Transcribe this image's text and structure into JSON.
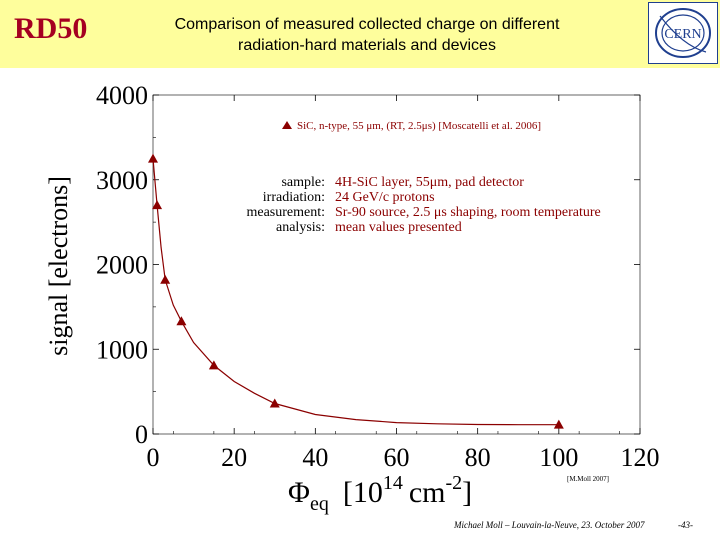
{
  "header": {
    "logo_text": "RD50",
    "title_line1": "Comparison of measured collected charge on different",
    "title_line2": "radiation-hard materials and devices",
    "cern_logo_text": "CERN"
  },
  "footer": {
    "credit": "Michael Moll – Louvain-la-Neuve, 23. October 2007",
    "page": "-43-"
  },
  "colors": {
    "header_bg": "#fefe9c",
    "rd50_text": "#a50021",
    "series": "#8b0000",
    "cern_blue": "#1f3f8f"
  },
  "chart_data": {
    "type": "scatter",
    "title": "",
    "ylabel": "signal [electrons]",
    "xlabel_main": "Φ",
    "xlabel_sub": "eq",
    "xlabel_unit_pre": "[10",
    "xlabel_unit_exp1": "14",
    "xlabel_unit_mid": "cm",
    "xlabel_unit_exp2": "-2",
    "xlabel_unit_post": "]",
    "xlim": [
      0,
      120
    ],
    "ylim": [
      0,
      4000
    ],
    "xticks": [
      "0",
      "20",
      "40",
      "60",
      "80",
      "100",
      "120"
    ],
    "yticks": [
      "0",
      "1000",
      "2000",
      "3000",
      "4000"
    ],
    "grid": false,
    "legend_position": "top-right",
    "series": [
      {
        "name": "SiC, n-type, 55 μm, (RT, 2.5μs) [Moscatelli et al. 2006]",
        "marker": "triangle",
        "x": [
          0,
          1,
          3,
          7,
          15,
          30,
          100
        ],
        "y": [
          3250,
          2700,
          1820,
          1330,
          810,
          360,
          110
        ]
      }
    ],
    "fit_curve": {
      "x": [
        0,
        0.5,
        1,
        2,
        3,
        5,
        7,
        10,
        15,
        20,
        25,
        30,
        40,
        50,
        60,
        70,
        80,
        90,
        100
      ],
      "y": [
        3250,
        2980,
        2700,
        2200,
        1820,
        1520,
        1330,
        1080,
        810,
        620,
        480,
        360,
        230,
        170,
        135,
        120,
        112,
        110,
        110
      ]
    },
    "annotations": [
      {
        "label": "sample:",
        "value": "4H-SiC layer, 55μm, pad detector"
      },
      {
        "label": "irradiation:",
        "value": "24 GeV/c protons"
      },
      {
        "label": "measurement:",
        "value": "Sr-90 source, 2.5 μs shaping, room temperature"
      },
      {
        "label": "analysis:",
        "value": "mean values presented"
      }
    ],
    "credit": "[M.Moll 2007]"
  }
}
